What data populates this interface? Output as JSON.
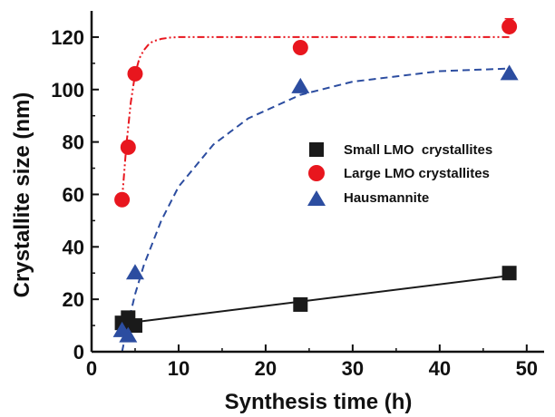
{
  "chart_data": {
    "type": "scatter",
    "title": "",
    "xlabel": "Synthesis time (h)",
    "ylabel": "Crystallite size (nm)",
    "xlim": [
      0,
      52
    ],
    "ylim": [
      0,
      130
    ],
    "xticks": [
      "0",
      "10",
      "20",
      "30",
      "40",
      "50"
    ],
    "yticks": [
      "0",
      "20",
      "40",
      "60",
      "80",
      "100",
      "120"
    ],
    "grid": false,
    "legend_position": "center-right",
    "series": [
      {
        "name": "Small LMO  crystallites",
        "marker": "square",
        "color": "#1a1a1a",
        "fit_style": "solid",
        "x": [
          3.5,
          4.2,
          5,
          24,
          48
        ],
        "y": [
          11,
          13,
          10,
          18,
          30
        ],
        "fit": {
          "x": [
            4.2,
            48
          ],
          "y": [
            11,
            29
          ]
        }
      },
      {
        "name": "Large LMO crystallites",
        "marker": "circle",
        "color": "#e8161e",
        "fit_style": "dash-dot-dot",
        "x": [
          3.5,
          4.2,
          5,
          24,
          48
        ],
        "y": [
          58,
          78,
          106,
          116,
          124
        ],
        "y_err": [
          0,
          0,
          0,
          0,
          3
        ],
        "fit": {
          "x": [
            3.5,
            4,
            4.5,
            5,
            5.5,
            6,
            6.5,
            7,
            8,
            9,
            10,
            12,
            16,
            24,
            48
          ],
          "y": [
            58,
            79,
            95,
            106,
            112,
            115,
            117,
            118.3,
            119.3,
            119.8,
            120,
            120,
            120,
            120,
            120
          ]
        }
      },
      {
        "name": "Hausmannite",
        "marker": "triangle",
        "color": "#2c4da0",
        "fit_style": "dashed",
        "x": [
          3.5,
          4.2,
          5,
          24,
          48
        ],
        "y": [
          8,
          6,
          30,
          101,
          106
        ],
        "fit": {
          "x": [
            3.5,
            4,
            5,
            6,
            8,
            10,
            14,
            18,
            24,
            30,
            40,
            48
          ],
          "y": [
            0,
            8,
            22,
            33,
            50,
            63,
            79,
            89,
            98,
            103,
            107,
            108
          ]
        }
      }
    ]
  }
}
